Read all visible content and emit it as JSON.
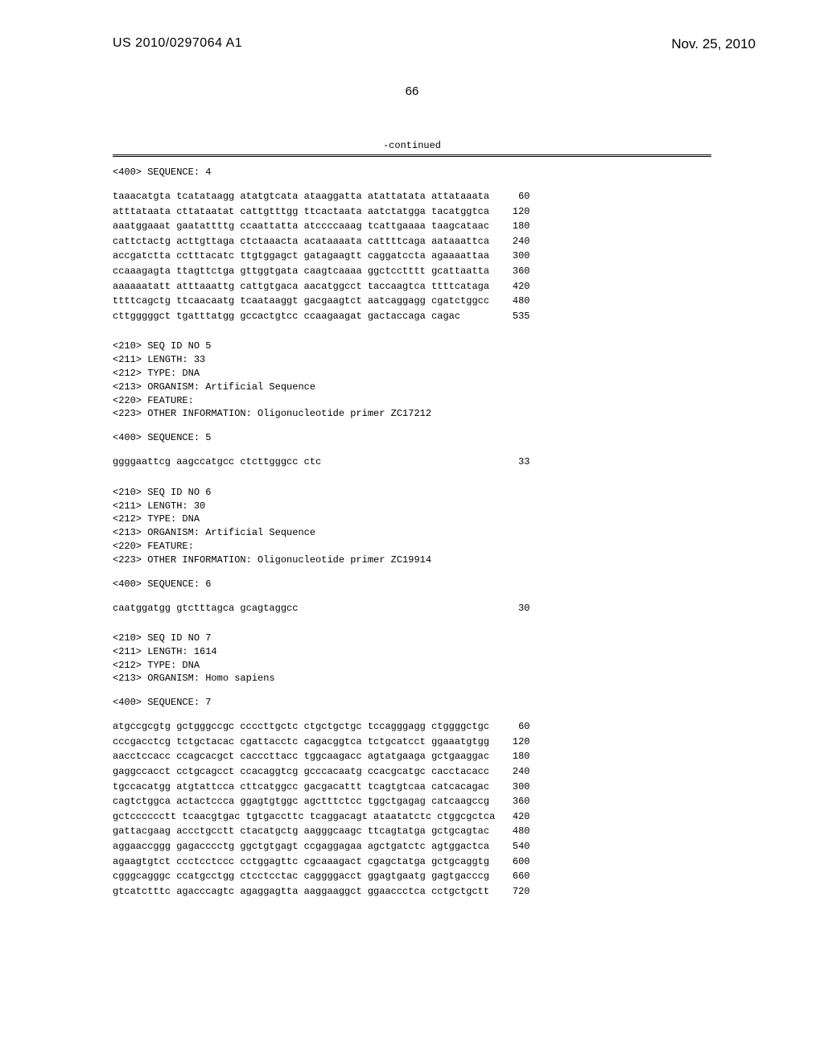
{
  "header": {
    "pub_number": "US 2010/0297064 A1",
    "pub_date": "Nov. 25, 2010",
    "page_number": "66"
  },
  "continued_label": "-continued",
  "seq4": {
    "header": "<400> SEQUENCE: 4",
    "rows": [
      {
        "s": "taaacatgta tcatataagg atatgtcata ataaggatta atattatata attataaata",
        "n": "60"
      },
      {
        "s": "atttataata cttataatat cattgtttgg ttcactaata aatctatgga tacatggtca",
        "n": "120"
      },
      {
        "s": "aaatggaaat gaatattttg ccaattatta atccccaaag tcattgaaaa taagcataac",
        "n": "180"
      },
      {
        "s": "cattctactg acttgttaga ctctaaacta acataaaata cattttcaga aataaattca",
        "n": "240"
      },
      {
        "s": "accgatctta cctttacatc ttgtggagct gatagaagtt caggatccta agaaaattaa",
        "n": "300"
      },
      {
        "s": "ccaaagagta ttagttctga gttggtgata caagtcaaaa ggctcctttt gcattaatta",
        "n": "360"
      },
      {
        "s": "aaaaaatatt atttaaattg cattgtgaca aacatggcct taccaagtca ttttcataga",
        "n": "420"
      },
      {
        "s": "ttttcagctg ttcaacaatg tcaataaggt gacgaagtct aatcaggagg cgatctggcc",
        "n": "480"
      },
      {
        "s": "cttgggggct tgatttatgg gccactgtcc ccaagaagat gactaccaga cagac",
        "n": "535"
      }
    ]
  },
  "seq5": {
    "meta": [
      "<210> SEQ ID NO 5",
      "<211> LENGTH: 33",
      "<212> TYPE: DNA",
      "<213> ORGANISM: Artificial Sequence",
      "<220> FEATURE:",
      "<223> OTHER INFORMATION: Oligonucleotide primer ZC17212"
    ],
    "header": "<400> SEQUENCE: 5",
    "rows": [
      {
        "s": "ggggaattcg aagccatgcc ctcttgggcc ctc",
        "n": "33"
      }
    ]
  },
  "seq6": {
    "meta": [
      "<210> SEQ ID NO 6",
      "<211> LENGTH: 30",
      "<212> TYPE: DNA",
      "<213> ORGANISM: Artificial Sequence",
      "<220> FEATURE:",
      "<223> OTHER INFORMATION: Oligonucleotide primer ZC19914"
    ],
    "header": "<400> SEQUENCE: 6",
    "rows": [
      {
        "s": "caatggatgg gtctttagca gcagtaggcc",
        "n": "30"
      }
    ]
  },
  "seq7": {
    "meta": [
      "<210> SEQ ID NO 7",
      "<211> LENGTH: 1614",
      "<212> TYPE: DNA",
      "<213> ORGANISM: Homo sapiens"
    ],
    "header": "<400> SEQUENCE: 7",
    "rows": [
      {
        "s": "atgccgcgtg gctgggccgc ccccttgctc ctgctgctgc tccagggagg ctggggctgc",
        "n": "60"
      },
      {
        "s": "cccgacctcg tctgctacac cgattacctc cagacggtca tctgcatcct ggaaatgtgg",
        "n": "120"
      },
      {
        "s": "aacctccacc ccagcacgct cacccttacc tggcaagacc agtatgaaga gctgaaggac",
        "n": "180"
      },
      {
        "s": "gaggccacct cctgcagcct ccacaggtcg gcccacaatg ccacgcatgc cacctacacc",
        "n": "240"
      },
      {
        "s": "tgccacatgg atgtattcca cttcatggcc gacgacattt tcagtgtcaa catcacagac",
        "n": "300"
      },
      {
        "s": "cagtctggca actactccca ggagtgtggc agctttctcc tggctgagag catcaagccg",
        "n": "360"
      },
      {
        "s": "gctcccccctt tcaacgtgac tgtgaccttc tcaggacagt ataatatctc ctggcgctca",
        "n": "420"
      },
      {
        "s": "gattacgaag accctgcctt ctacatgctg aagggcaagc ttcagtatga gctgcagtac",
        "n": "480"
      },
      {
        "s": "aggaaccggg gagacccctg ggctgtgagt ccgaggagaa agctgatctc agtggactca",
        "n": "540"
      },
      {
        "s": "agaagtgtct ccctcctccc cctggagttc cgcaaagact cgagctatga gctgcaggtg",
        "n": "600"
      },
      {
        "s": "cgggcagggc ccatgcctgg ctcctcctac caggggacct ggagtgaatg gagtgacccg",
        "n": "660"
      },
      {
        "s": "gtcatctttc agacccagtc agaggagtta aaggaaggct ggaaccctca cctgctgctt",
        "n": "720"
      }
    ]
  },
  "style": {
    "seq_width_ch": 66,
    "num_col_width_ch": 6
  }
}
